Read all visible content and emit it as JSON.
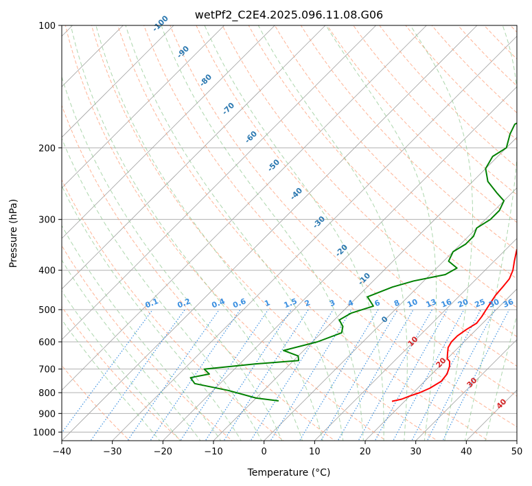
{
  "chart_data": {
    "type": "line",
    "title": "wetPf2_C2E4.2025.096.11.08.G06",
    "xlabel": "Temperature (°C)",
    "ylabel": "Pressure (hPa)",
    "xlim": [
      -40,
      50
    ],
    "ylim": [
      1050,
      100
    ],
    "y_scale": "log",
    "grid": true,
    "x_ticks": [
      -40,
      -30,
      -20,
      -10,
      0,
      10,
      20,
      30,
      40,
      50
    ],
    "y_ticks": [
      1000,
      900,
      800,
      700,
      600,
      500,
      400,
      300,
      200,
      100
    ],
    "isotherm_skew": "skew-T",
    "series": [
      {
        "name": "",
        "color": "#ff0000",
        "points": [
          [
            17.5,
            840
          ],
          [
            19,
            830
          ],
          [
            20,
            815
          ],
          [
            21.3,
            800
          ],
          [
            22.4,
            780
          ],
          [
            23.3,
            750
          ],
          [
            23,
            720
          ],
          [
            22,
            690
          ],
          [
            21,
            670
          ],
          [
            20,
            660
          ],
          [
            19,
            640
          ],
          [
            18,
            620
          ],
          [
            17.5,
            600
          ],
          [
            17.5,
            580
          ],
          [
            18,
            560
          ],
          [
            18.8,
            540
          ],
          [
            18.5,
            520
          ],
          [
            18,
            500
          ],
          [
            17.5,
            480
          ],
          [
            17,
            460
          ],
          [
            16.8,
            440
          ],
          [
            16.5,
            420
          ],
          [
            15.5,
            400
          ],
          [
            14,
            380
          ],
          [
            12.5,
            360
          ],
          [
            11.5,
            345
          ],
          [
            10,
            330
          ],
          [
            8.5,
            310
          ],
          [
            7,
            290
          ],
          [
            5.5,
            270
          ],
          [
            4,
            255
          ],
          [
            4,
            245
          ],
          [
            4.5,
            235
          ],
          [
            4.3,
            220
          ],
          [
            4.5,
            205
          ],
          [
            4,
            190
          ],
          [
            4,
            180
          ],
          [
            5,
            165
          ],
          [
            5.4,
            155
          ],
          [
            5.2,
            145
          ],
          [
            5.5,
            130
          ],
          [
            6,
            125
          ],
          [
            6,
            115
          ],
          [
            5.8,
            105
          ],
          [
            6,
            100
          ]
        ]
      },
      {
        "name": "",
        "color": "#008000",
        "points": [
          [
            -5,
            838
          ],
          [
            -10,
            825
          ],
          [
            -17,
            790
          ],
          [
            -25,
            760
          ],
          [
            -27,
            735
          ],
          [
            -24,
            720
          ],
          [
            -26,
            700
          ],
          [
            -17,
            680
          ],
          [
            -9,
            667
          ],
          [
            -10,
            650
          ],
          [
            -14,
            630
          ],
          [
            -9,
            600
          ],
          [
            -6,
            570
          ],
          [
            -7,
            550
          ],
          [
            -9,
            530
          ],
          [
            -8,
            510
          ],
          [
            -5,
            490
          ],
          [
            -8,
            465
          ],
          [
            -5,
            440
          ],
          [
            -2,
            425
          ],
          [
            3,
            410
          ],
          [
            4,
            395
          ],
          [
            1,
            380
          ],
          [
            0,
            360
          ],
          [
            1,
            345
          ],
          [
            1,
            330
          ],
          [
            0,
            315
          ],
          [
            1,
            300
          ],
          [
            1,
            285
          ],
          [
            0,
            270
          ],
          [
            -3,
            258
          ],
          [
            -7,
            242
          ],
          [
            -10,
            225
          ],
          [
            -11,
            210
          ],
          [
            -10,
            200
          ],
          [
            -12,
            185
          ],
          [
            -13,
            175
          ],
          [
            -11,
            165
          ],
          [
            -9,
            155
          ],
          [
            -7,
            140
          ],
          [
            -5,
            125
          ],
          [
            -4,
            115
          ],
          [
            -3,
            100
          ]
        ]
      }
    ],
    "dry_adiabat_labels": [
      "-100",
      "-90",
      "-80",
      "-70",
      "-60",
      "-50",
      "-40",
      "-30",
      "-20",
      "-10",
      "0",
      "10",
      "20",
      "30",
      "40"
    ],
    "mixing_ratio_labels": [
      "0.1",
      "0.2",
      "0.4",
      "0.6",
      "1",
      "1.5",
      "2",
      "3",
      "4",
      "6",
      "8",
      "10",
      "13",
      "16",
      "20",
      "25",
      "30",
      "36"
    ],
    "colors": {
      "temperature": "#ff0000",
      "dewpoint": "#008000",
      "isotherm": "#a0a0a0",
      "isobar": "#b0b0b0",
      "dry_adiabat": "#ffa07a",
      "moist_adiabat": "#90c890",
      "mixing_ratio": "#3a8fe0",
      "dry_label": "#2b78b0",
      "moist_label": "#d62728"
    }
  }
}
